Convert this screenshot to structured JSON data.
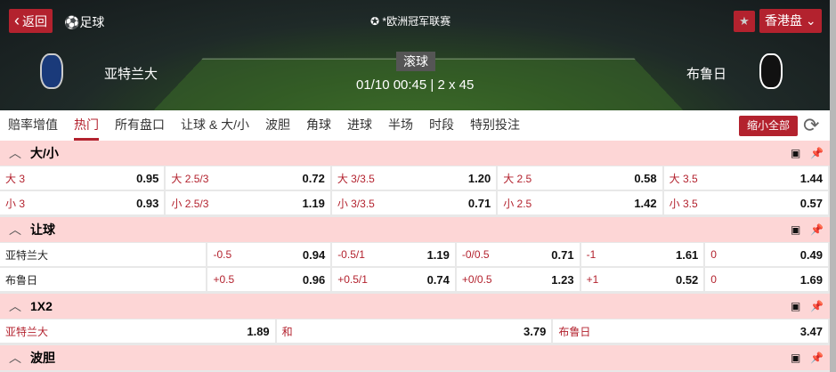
{
  "header": {
    "back_label": "返回",
    "sport": "足球",
    "league": "*欧洲冠军联赛",
    "odds_type": "香港盘",
    "home": "亚特兰大",
    "away": "布鲁日",
    "status": "滚球",
    "time": "01/10 00:45 | 2 x 45"
  },
  "tabs": [
    "赔率增值",
    "热门",
    "所有盘口",
    "让球 & 大/小",
    "波胆",
    "角球",
    "进球",
    "半场",
    "时段",
    "特别投注"
  ],
  "active_tab": "热门",
  "collapse_label": "缩小全部",
  "sections": {
    "ou": {
      "title": "大/小",
      "rows": [
        [
          [
            "大 3",
            "0.95"
          ],
          [
            "大 2.5/3",
            "0.72"
          ],
          [
            "大 3/3.5",
            "1.20"
          ],
          [
            "大 2.5",
            "0.58"
          ],
          [
            "大 3.5",
            "1.44"
          ]
        ],
        [
          [
            "小 3",
            "0.93"
          ],
          [
            "小 2.5/3",
            "1.19"
          ],
          [
            "小 3/3.5",
            "0.71"
          ],
          [
            "小 2.5",
            "1.42"
          ],
          [
            "小 3.5",
            "0.57"
          ]
        ]
      ]
    },
    "hdp": {
      "title": "让球",
      "rows": [
        {
          "team": "亚特兰大",
          "cells": [
            [
              "-0.5",
              "0.94"
            ],
            [
              "-0.5/1",
              "1.19"
            ],
            [
              "-0/0.5",
              "0.71"
            ],
            [
              "-1",
              "1.61"
            ],
            [
              "0",
              "0.49"
            ]
          ]
        },
        {
          "team": "布鲁日",
          "cells": [
            [
              "+0.5",
              "0.96"
            ],
            [
              "+0.5/1",
              "0.74"
            ],
            [
              "+0/0.5",
              "1.23"
            ],
            [
              "+1",
              "0.52"
            ],
            [
              "0",
              "1.69"
            ]
          ]
        }
      ]
    },
    "x12": {
      "title": "1X2",
      "cells": [
        [
          "亚特兰大",
          "1.89"
        ],
        [
          "和",
          "3.79"
        ],
        [
          "布鲁日",
          "3.47"
        ]
      ]
    },
    "cs": {
      "title": "波胆"
    }
  },
  "colors": {
    "accent": "#b3222e",
    "section_bg": "#fdd6d6"
  }
}
